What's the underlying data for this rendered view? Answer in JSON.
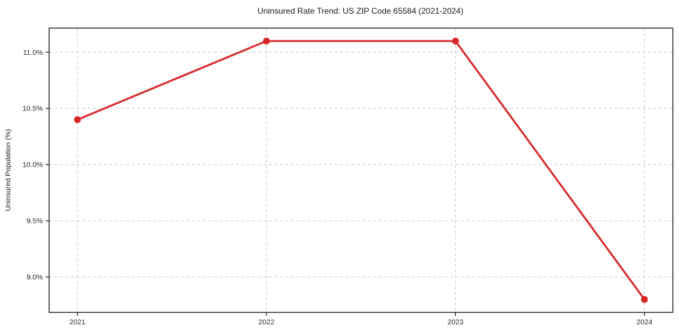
{
  "chart_data": {
    "type": "line",
    "title": "Uninsured Rate Trend: US ZIP Code 65584 (2021-2024)",
    "xlabel": "",
    "ylabel": "Uninsured Population (%)",
    "x": [
      2021,
      2022,
      2023,
      2024
    ],
    "x_tick_labels": [
      "2021",
      "2022",
      "2023",
      "2024"
    ],
    "values": [
      10.4,
      11.1,
      11.1,
      8.8
    ],
    "value_labels": [
      "10.4%",
      "11.1%",
      "11.1%",
      "8.8%"
    ],
    "y_ticks": [
      9.0,
      9.5,
      10.0,
      10.5,
      11.0
    ],
    "y_tick_labels": [
      "9.0%",
      "9.5%",
      "10.0%",
      "10.5%",
      "11.0%"
    ],
    "xlim": [
      2020.85,
      2024.15
    ],
    "ylim": [
      8.685,
      11.215
    ],
    "grid": true,
    "grid_style": "dashed",
    "legend": "none",
    "colors": {
      "line": "#d62728",
      "marker": "#d62728",
      "grid": "#cccccc",
      "spine": "#1a1a1a",
      "text": "#262626",
      "background": "#ffffff"
    }
  }
}
